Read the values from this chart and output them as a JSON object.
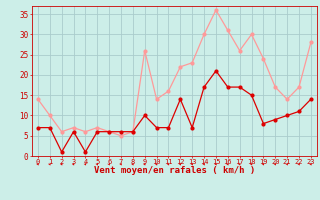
{
  "x": [
    0,
    1,
    2,
    3,
    4,
    5,
    6,
    7,
    8,
    9,
    10,
    11,
    12,
    13,
    14,
    15,
    16,
    17,
    18,
    19,
    20,
    21,
    22,
    23
  ],
  "wind_avg": [
    7,
    7,
    1,
    6,
    1,
    6,
    6,
    6,
    6,
    10,
    7,
    7,
    14,
    7,
    17,
    21,
    17,
    17,
    15,
    8,
    9,
    10,
    11,
    14
  ],
  "wind_gust": [
    14,
    10,
    6,
    7,
    6,
    7,
    6,
    5,
    6,
    26,
    14,
    16,
    22,
    23,
    30,
    36,
    31,
    26,
    30,
    24,
    17,
    14,
    17,
    28
  ],
  "bg_color": "#cceee8",
  "grid_color": "#aacccc",
  "avg_color": "#dd0000",
  "gust_color": "#ff9999",
  "xlabel": "Vent moyen/en rafales ( km/h )",
  "ylim": [
    0,
    37
  ],
  "yticks": [
    0,
    5,
    10,
    15,
    20,
    25,
    30,
    35
  ],
  "tick_color": "#cc0000",
  "label_fontsize": 6.5,
  "tick_fontsize": 5.0
}
